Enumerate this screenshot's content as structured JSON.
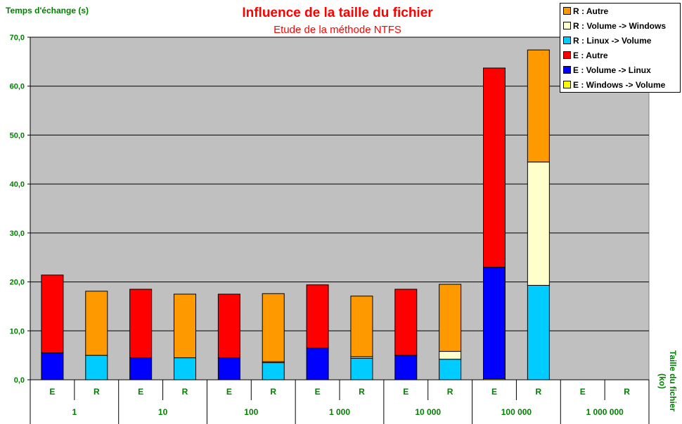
{
  "title": "Influence de la taille du fichier",
  "subtitle": "Etude de la méthode NTFS",
  "colors": {
    "plot_bg": "#c0c0c0",
    "title": "#ff0000",
    "axis_text": "#008000",
    "grid": "#000000"
  },
  "legend": [
    {
      "label": "R : Autre",
      "color": "#ff9900"
    },
    {
      "label": "R : Volume -> Windows",
      "color": "#ffffcc"
    },
    {
      "label": "R : Linux -> Volume",
      "color": "#00ccff"
    },
    {
      "label": "E : Autre",
      "color": "#ff0000"
    },
    {
      "label": "E : Volume -> Linux",
      "color": "#0000ff"
    },
    {
      "label": "E : Windows -> Volume",
      "color": "#ffff00"
    }
  ],
  "chart_data": {
    "type": "bar",
    "stacked": true,
    "ylabel": "Temps d'échange (s)",
    "xlabel": "Taille du fichier (ko)",
    "ylim": [
      0,
      70
    ],
    "yticks": [
      "0,0",
      "10,0",
      "20,0",
      "30,0",
      "40,0",
      "50,0",
      "60,0",
      "70,0"
    ],
    "grid": true,
    "legend_position": "top-right",
    "groups": [
      "1",
      "10",
      "100",
      "1 000",
      "10 000",
      "100 000",
      "1 000 000"
    ],
    "categories": [
      "E",
      "R",
      "E",
      "R",
      "E",
      "R",
      "E",
      "R",
      "E",
      "R",
      "E",
      "R",
      "E",
      "R"
    ],
    "series": [
      {
        "name": "E : Windows -> Volume",
        "color": "#ffff00",
        "values": [
          0,
          0,
          0,
          0,
          0,
          0,
          0,
          0,
          0,
          0,
          0.2,
          0,
          0,
          0
        ]
      },
      {
        "name": "E : Volume -> Linux",
        "color": "#0000ff",
        "values": [
          5.5,
          0,
          4.5,
          0,
          4.5,
          0,
          6.5,
          0,
          5.0,
          0,
          22.8,
          0,
          0,
          0
        ]
      },
      {
        "name": "E : Autre",
        "color": "#ff0000",
        "values": [
          15.9,
          0,
          14.0,
          0,
          13.0,
          0,
          12.9,
          0,
          13.5,
          0,
          40.7,
          0,
          0,
          0
        ]
      },
      {
        "name": "R : Linux -> Volume",
        "color": "#00ccff",
        "values": [
          0,
          5.0,
          0,
          4.5,
          0,
          3.5,
          0,
          4.4,
          0,
          4.2,
          0,
          19.3,
          0,
          0
        ]
      },
      {
        "name": "R : Volume -> Windows",
        "color": "#ffffcc",
        "values": [
          0,
          0,
          0,
          0,
          0,
          0.2,
          0,
          0.3,
          0,
          1.6,
          0,
          25.2,
          0,
          0
        ]
      },
      {
        "name": "R : Autre",
        "color": "#ff9900",
        "values": [
          0,
          13.1,
          0,
          13.0,
          0,
          13.9,
          0,
          12.4,
          0,
          13.7,
          0,
          22.9,
          0,
          0
        ]
      }
    ]
  }
}
